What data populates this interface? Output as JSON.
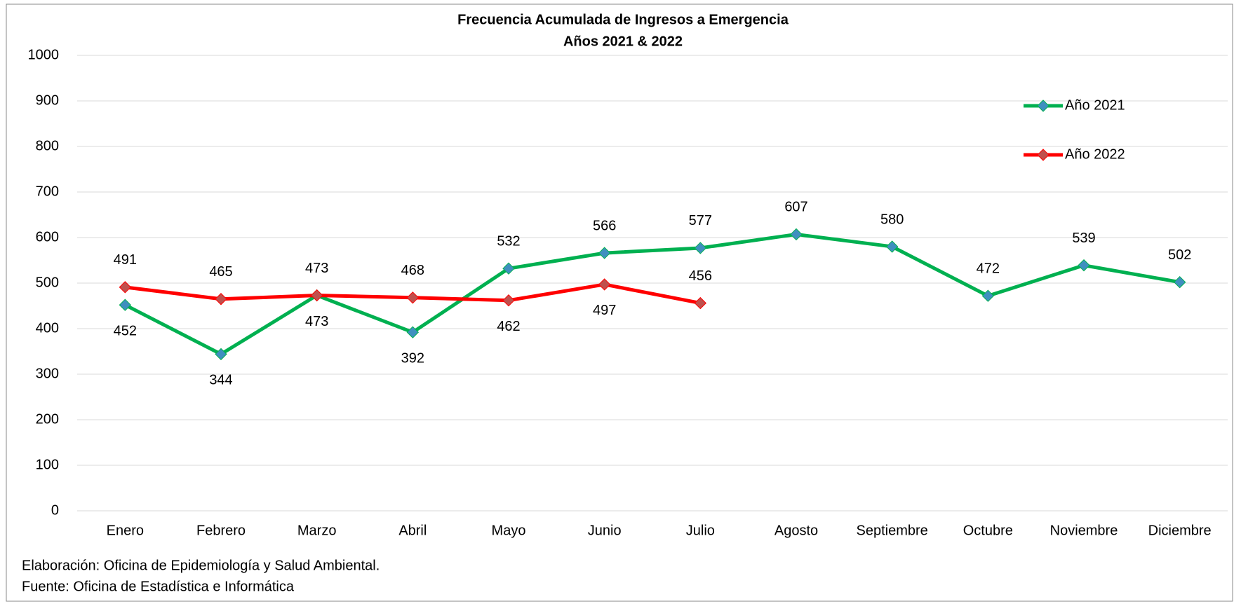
{
  "chart_data": {
    "type": "line",
    "title": "Frecuencia Acumulada de Ingresos a Emergencia",
    "subtitle": "Años 2021 & 2022",
    "categories": [
      "Enero",
      "Febrero",
      "Marzo",
      "Abril",
      "Mayo",
      "Junio",
      "Julio",
      "Agosto",
      "Septiembre",
      "Octubre",
      "Noviembre",
      "Diciembre"
    ],
    "series": [
      {
        "name": "Año 2021",
        "color": "#00b050",
        "marker_color": "#3f8fbf",
        "values": [
          452,
          344,
          473,
          392,
          532,
          566,
          577,
          607,
          580,
          472,
          539,
          502
        ]
      },
      {
        "name": "Año 2022",
        "color": "#ff0000",
        "marker_color": "#c0504d",
        "values": [
          491,
          465,
          473,
          468,
          462,
          497,
          456,
          null,
          null,
          null,
          null,
          null
        ]
      }
    ],
    "ylim": [
      0,
      1000
    ],
    "yticks": [
      0,
      100,
      200,
      300,
      400,
      500,
      600,
      700,
      800,
      900,
      1000
    ],
    "grid": true,
    "legend": "upper right",
    "notes": [
      "Elaboración: Oficina de Epidemiología y Salud Ambiental.",
      "Fuente:  Oficina de Estadística e Informática"
    ]
  }
}
